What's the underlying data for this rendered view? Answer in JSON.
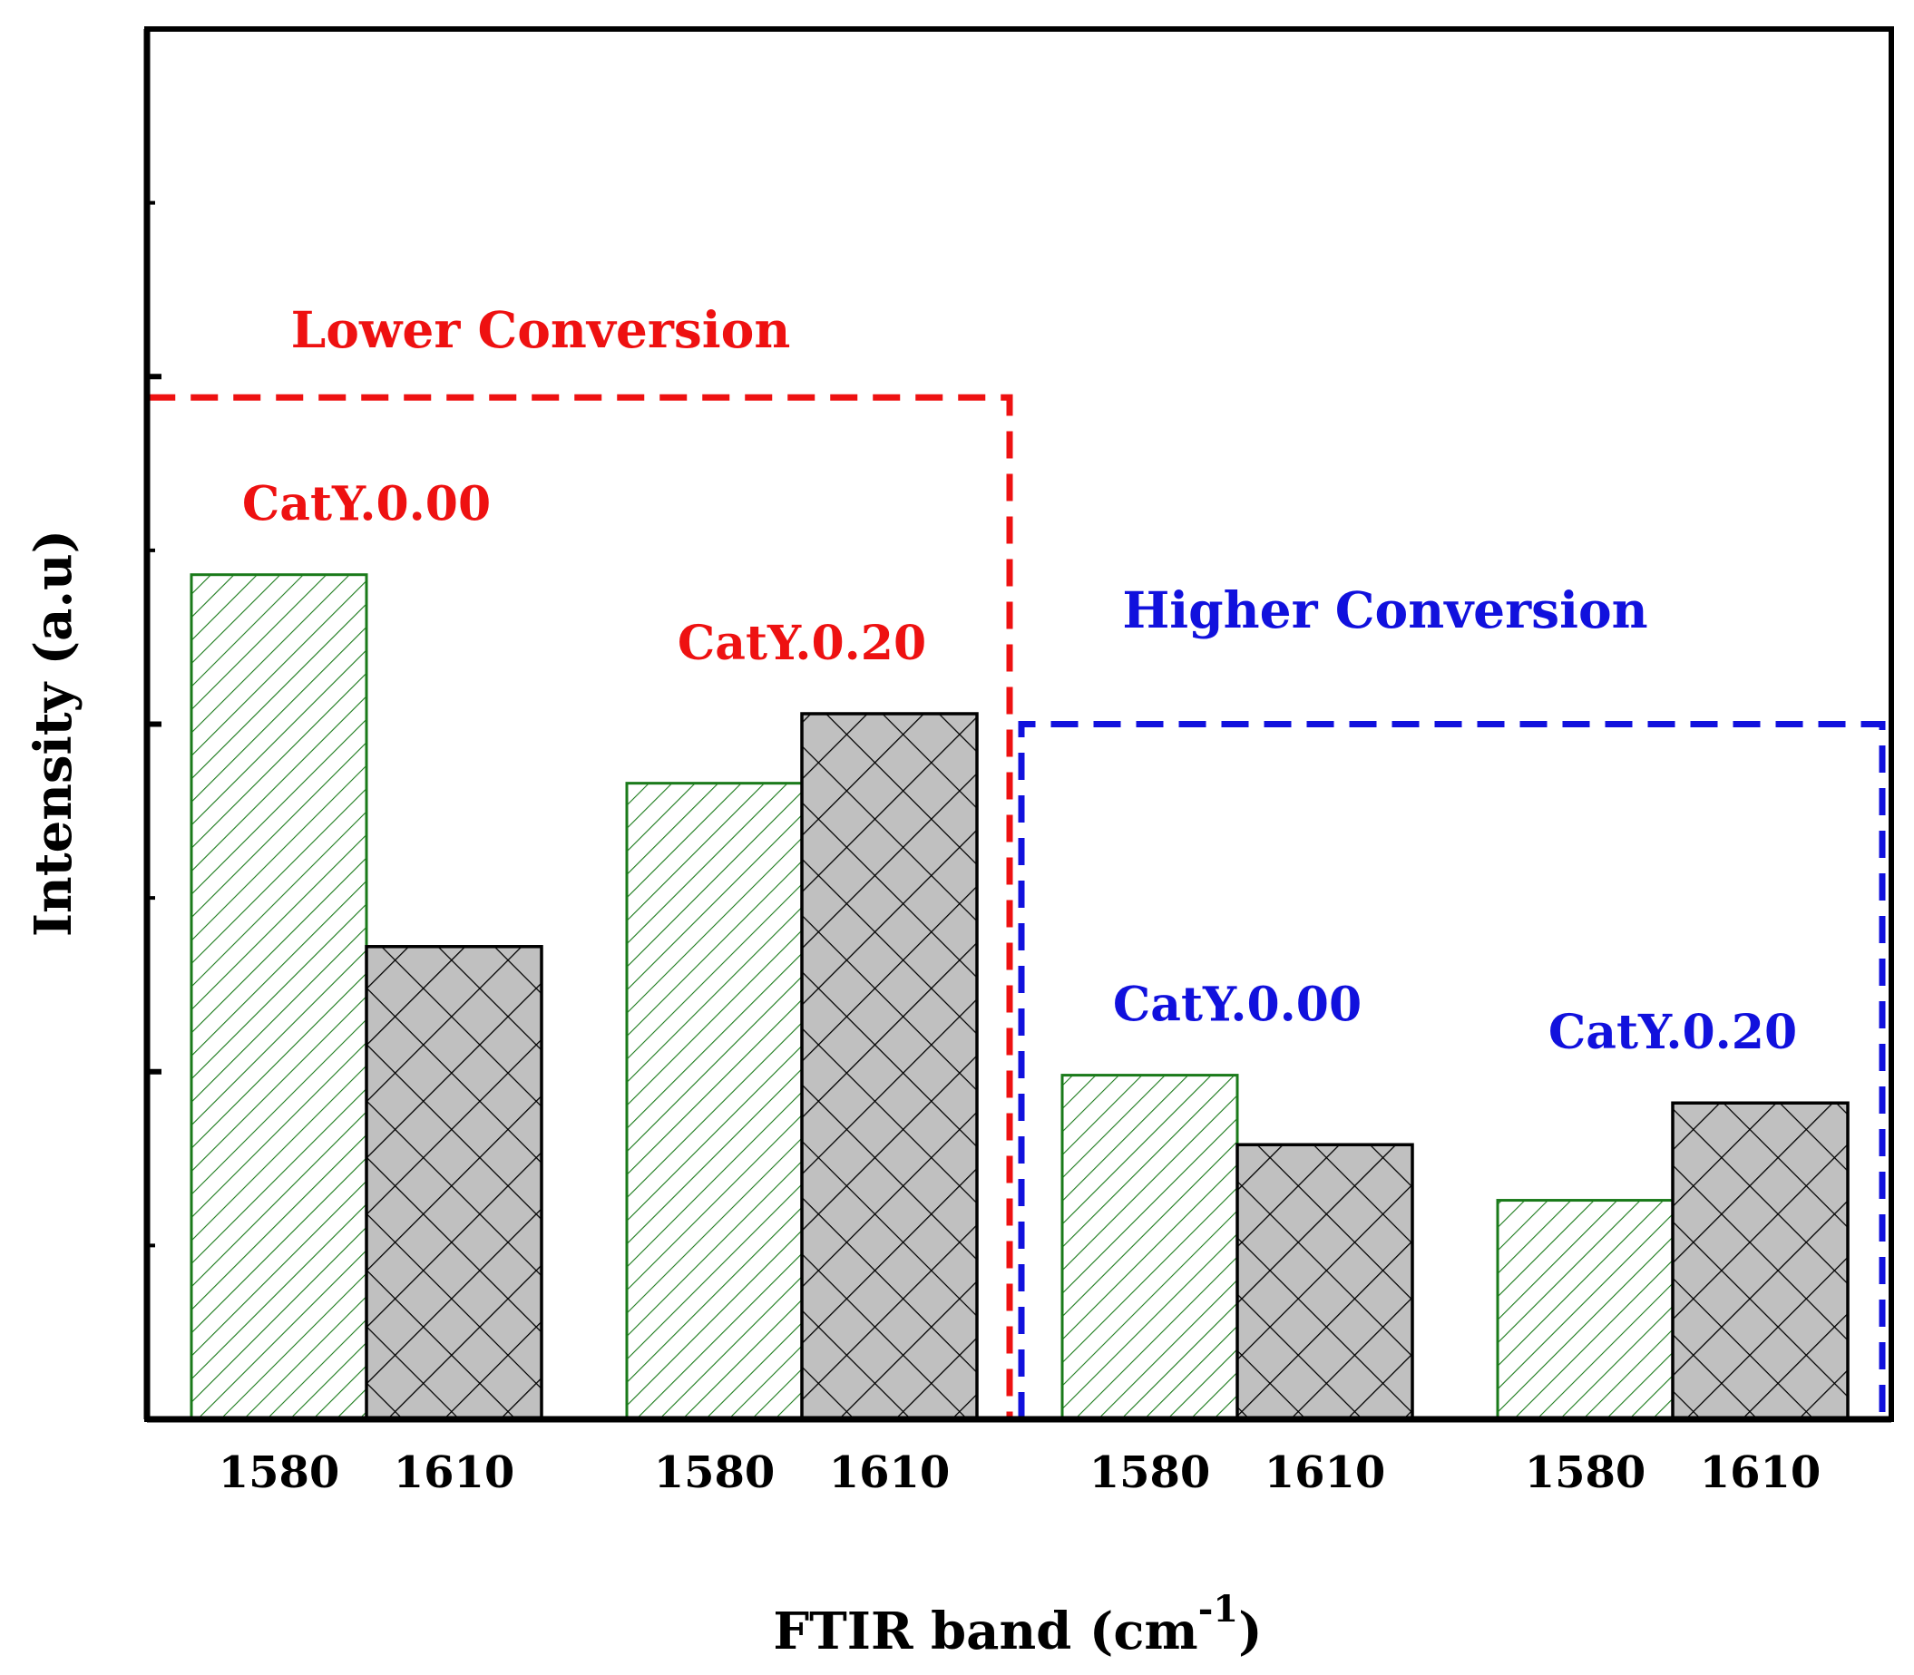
{
  "chart_data": {
    "type": "bar",
    "xlabel": "FTIR band (cm",
    "xlabel_superscript": "-1",
    "xlabel_close": ")",
    "ylabel": "Intensity (a.u)",
    "ylim": [
      0,
      4
    ],
    "yticks": [
      1,
      2,
      3
    ],
    "ytick_labels_shown": false,
    "groups": [
      {
        "name": "CatY.0.00",
        "conversion": "lower",
        "bands": [
          "1580",
          "1610"
        ],
        "values": [
          2.43,
          1.36
        ]
      },
      {
        "name": "CatY.0.20",
        "conversion": "lower",
        "bands": [
          "1580",
          "1610"
        ],
        "values": [
          1.83,
          2.03
        ]
      },
      {
        "name": "CatY.0.00",
        "conversion": "higher",
        "bands": [
          "1580",
          "1610"
        ],
        "values": [
          0.99,
          0.79
        ]
      },
      {
        "name": "CatY.0.20",
        "conversion": "higher",
        "bands": [
          "1580",
          "1610"
        ],
        "values": [
          0.63,
          0.91
        ]
      }
    ],
    "series": [
      {
        "name": "1580",
        "pattern": "diagonal-hatch",
        "edge_color": "#1a7a1a"
      },
      {
        "name": "1610",
        "pattern": "cross-hatch",
        "fill_color": "#c0c0c0",
        "edge_color": "#000000"
      }
    ],
    "regions": [
      {
        "label": "Lower Conversion",
        "color": "#ee1111",
        "groups": [
          0,
          1
        ],
        "top_value": 2.94
      },
      {
        "label": "Higher Conversion",
        "color": "#1111dd",
        "groups": [
          2,
          3
        ],
        "top_value": 2.0
      }
    ]
  }
}
